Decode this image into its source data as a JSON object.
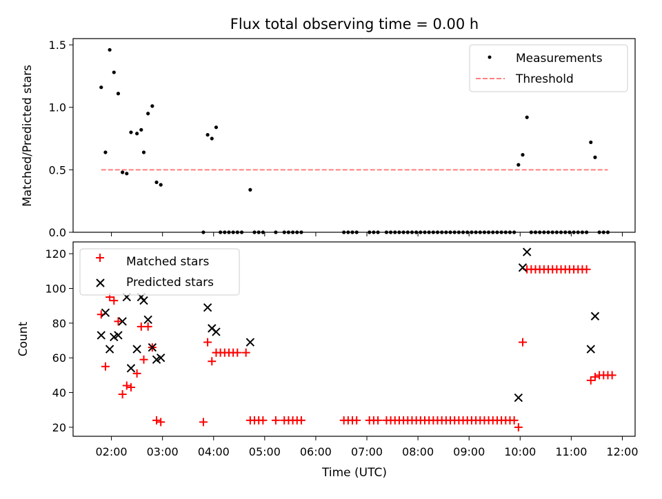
{
  "title": "Flux total observing time = 0.00 h",
  "chart_data": [
    {
      "id": "ratio",
      "type": "scatter",
      "ylabel": "Matched/Predicted stars",
      "xlim": [
        "01:15",
        "12:15"
      ],
      "ylim": [
        0,
        1.55
      ],
      "yticks": [
        0.0,
        0.5,
        1.0,
        1.5
      ],
      "ytick_labels": [
        "0.0",
        "0.5",
        "1.0",
        "1.5"
      ],
      "legend_position": "top-right",
      "legend": [
        "Measurements",
        "Threshold"
      ],
      "series": [
        {
          "name": "Measurements",
          "style": "dot",
          "color": "#000000",
          "points": [
            [
              "01:48",
              1.16
            ],
            [
              "01:53",
              0.64
            ],
            [
              "01:58",
              1.46
            ],
            [
              "02:03",
              1.28
            ],
            [
              "02:08",
              1.11
            ],
            [
              "02:13",
              0.48
            ],
            [
              "02:18",
              0.47
            ],
            [
              "02:23",
              0.8
            ],
            [
              "02:30",
              0.79
            ],
            [
              "02:35",
              0.82
            ],
            [
              "02:38",
              0.64
            ],
            [
              "02:43",
              0.95
            ],
            [
              "02:48",
              1.01
            ],
            [
              "02:53",
              0.4
            ],
            [
              "02:58",
              0.38
            ],
            [
              "03:48",
              0.0
            ],
            [
              "03:53",
              0.78
            ],
            [
              "03:58",
              0.75
            ],
            [
              "04:03",
              0.84
            ],
            [
              "04:08",
              0.0
            ],
            [
              "04:13",
              0.0
            ],
            [
              "04:18",
              0.0
            ],
            [
              "04:23",
              0.0
            ],
            [
              "04:28",
              0.0
            ],
            [
              "04:33",
              0.0
            ],
            [
              "04:43",
              0.34
            ],
            [
              "04:48",
              0.0
            ],
            [
              "04:53",
              0.0
            ],
            [
              "04:58",
              0.0
            ],
            [
              "05:13",
              0.0
            ],
            [
              "05:23",
              0.0
            ],
            [
              "05:28",
              0.0
            ],
            [
              "05:33",
              0.0
            ],
            [
              "05:38",
              0.0
            ],
            [
              "05:43",
              0.0
            ],
            [
              "06:33",
              0.0
            ],
            [
              "06:38",
              0.0
            ],
            [
              "06:43",
              0.0
            ],
            [
              "06:48",
              0.0
            ],
            [
              "07:03",
              0.0
            ],
            [
              "07:08",
              0.0
            ],
            [
              "07:13",
              0.0
            ],
            [
              "07:23",
              0.0
            ],
            [
              "07:28",
              0.0
            ],
            [
              "07:33",
              0.0
            ],
            [
              "07:38",
              0.0
            ],
            [
              "07:43",
              0.0
            ],
            [
              "07:48",
              0.0
            ],
            [
              "07:53",
              0.0
            ],
            [
              "07:58",
              0.0
            ],
            [
              "08:03",
              0.0
            ],
            [
              "08:08",
              0.0
            ],
            [
              "08:13",
              0.0
            ],
            [
              "08:18",
              0.0
            ],
            [
              "08:23",
              0.0
            ],
            [
              "08:28",
              0.0
            ],
            [
              "08:33",
              0.0
            ],
            [
              "08:38",
              0.0
            ],
            [
              "08:43",
              0.0
            ],
            [
              "08:48",
              0.0
            ],
            [
              "08:53",
              0.0
            ],
            [
              "08:58",
              0.0
            ],
            [
              "09:03",
              0.0
            ],
            [
              "09:08",
              0.0
            ],
            [
              "09:13",
              0.0
            ],
            [
              "09:18",
              0.0
            ],
            [
              "09:23",
              0.0
            ],
            [
              "09:28",
              0.0
            ],
            [
              "09:33",
              0.0
            ],
            [
              "09:38",
              0.0
            ],
            [
              "09:43",
              0.0
            ],
            [
              "09:48",
              0.0
            ],
            [
              "09:53",
              0.0
            ],
            [
              "09:58",
              0.54
            ],
            [
              "10:03",
              0.62
            ],
            [
              "10:08",
              0.92
            ],
            [
              "10:13",
              0.0
            ],
            [
              "10:18",
              0.0
            ],
            [
              "10:23",
              0.0
            ],
            [
              "10:28",
              0.0
            ],
            [
              "10:33",
              0.0
            ],
            [
              "10:38",
              0.0
            ],
            [
              "10:43",
              0.0
            ],
            [
              "10:48",
              0.0
            ],
            [
              "10:53",
              0.0
            ],
            [
              "10:58",
              0.0
            ],
            [
              "11:03",
              0.0
            ],
            [
              "11:08",
              0.0
            ],
            [
              "11:13",
              0.0
            ],
            [
              "11:18",
              0.0
            ],
            [
              "11:23",
              0.72
            ],
            [
              "11:28",
              0.6
            ],
            [
              "11:33",
              0.0
            ],
            [
              "11:38",
              0.0
            ],
            [
              "11:43",
              0.0
            ]
          ]
        },
        {
          "name": "Threshold",
          "style": "dashed-line",
          "color": "#ff7f7f",
          "points": [
            [
              "01:48",
              0.5
            ],
            [
              "11:43",
              0.5
            ]
          ]
        }
      ]
    },
    {
      "id": "counts",
      "type": "scatter",
      "ylabel": "Count",
      "xlabel": "Time (UTC)",
      "xlim": [
        "01:15",
        "12:15"
      ],
      "xticks": [
        "02:00",
        "03:00",
        "04:00",
        "05:00",
        "06:00",
        "07:00",
        "08:00",
        "09:00",
        "10:00",
        "11:00",
        "12:00"
      ],
      "ylim": [
        14.8,
        126.8
      ],
      "yticks": [
        20,
        40,
        60,
        80,
        100,
        120
      ],
      "ytick_labels": [
        "20",
        "40",
        "60",
        "80",
        "100",
        "120"
      ],
      "legend_position": "top-left",
      "legend": [
        "Matched stars",
        "Predicted stars"
      ],
      "series": [
        {
          "name": "Matched stars",
          "marker": "plus",
          "color": "#ff0000",
          "points": [
            [
              "01:48",
              85
            ],
            [
              "01:53",
              55
            ],
            [
              "01:58",
              95
            ],
            [
              "02:03",
              93
            ],
            [
              "02:08",
              81
            ],
            [
              "02:13",
              39
            ],
            [
              "02:18",
              44
            ],
            [
              "02:23",
              43
            ],
            [
              "02:30",
              51
            ],
            [
              "02:35",
              78
            ],
            [
              "02:38",
              59
            ],
            [
              "02:43",
              78
            ],
            [
              "02:48",
              66
            ],
            [
              "02:53",
              24
            ],
            [
              "02:58",
              23
            ],
            [
              "03:48",
              23
            ],
            [
              "03:53",
              69
            ],
            [
              "03:58",
              58
            ],
            [
              "04:03",
              63
            ],
            [
              "04:08",
              63
            ],
            [
              "04:13",
              63
            ],
            [
              "04:18",
              63
            ],
            [
              "04:23",
              63
            ],
            [
              "04:28",
              63
            ],
            [
              "04:38",
              63
            ],
            [
              "04:43",
              24
            ],
            [
              "04:48",
              24
            ],
            [
              "04:53",
              24
            ],
            [
              "04:58",
              24
            ],
            [
              "05:13",
              24
            ],
            [
              "05:23",
              24
            ],
            [
              "05:28",
              24
            ],
            [
              "05:33",
              24
            ],
            [
              "05:38",
              24
            ],
            [
              "05:43",
              24
            ],
            [
              "06:33",
              24
            ],
            [
              "06:38",
              24
            ],
            [
              "06:43",
              24
            ],
            [
              "06:48",
              24
            ],
            [
              "07:03",
              24
            ],
            [
              "07:08",
              24
            ],
            [
              "07:13",
              24
            ],
            [
              "07:23",
              24
            ],
            [
              "07:28",
              24
            ],
            [
              "07:33",
              24
            ],
            [
              "07:38",
              24
            ],
            [
              "07:43",
              24
            ],
            [
              "07:48",
              24
            ],
            [
              "07:53",
              24
            ],
            [
              "07:58",
              24
            ],
            [
              "08:03",
              24
            ],
            [
              "08:08",
              24
            ],
            [
              "08:13",
              24
            ],
            [
              "08:18",
              24
            ],
            [
              "08:23",
              24
            ],
            [
              "08:28",
              24
            ],
            [
              "08:33",
              24
            ],
            [
              "08:38",
              24
            ],
            [
              "08:43",
              24
            ],
            [
              "08:48",
              24
            ],
            [
              "08:53",
              24
            ],
            [
              "08:58",
              24
            ],
            [
              "09:03",
              24
            ],
            [
              "09:08",
              24
            ],
            [
              "09:13",
              24
            ],
            [
              "09:18",
              24
            ],
            [
              "09:23",
              24
            ],
            [
              "09:28",
              24
            ],
            [
              "09:33",
              24
            ],
            [
              "09:38",
              24
            ],
            [
              "09:43",
              24
            ],
            [
              "09:48",
              24
            ],
            [
              "09:53",
              24
            ],
            [
              "09:58",
              20
            ],
            [
              "10:03",
              69
            ],
            [
              "10:08",
              111
            ],
            [
              "10:13",
              111
            ],
            [
              "10:18",
              111
            ],
            [
              "10:23",
              111
            ],
            [
              "10:28",
              111
            ],
            [
              "10:33",
              111
            ],
            [
              "10:38",
              111
            ],
            [
              "10:43",
              111
            ],
            [
              "10:48",
              111
            ],
            [
              "10:53",
              111
            ],
            [
              "10:58",
              111
            ],
            [
              "11:03",
              111
            ],
            [
              "11:08",
              111
            ],
            [
              "11:13",
              111
            ],
            [
              "11:18",
              111
            ],
            [
              "11:23",
              47
            ],
            [
              "11:28",
              49
            ],
            [
              "11:33",
              50
            ],
            [
              "11:38",
              50
            ],
            [
              "11:43",
              50
            ],
            [
              "11:48",
              50
            ]
          ]
        },
        {
          "name": "Predicted stars",
          "marker": "x",
          "color": "#000000",
          "points": [
            [
              "01:48",
              73
            ],
            [
              "01:53",
              86
            ],
            [
              "01:58",
              65
            ],
            [
              "02:03",
              72
            ],
            [
              "02:08",
              73
            ],
            [
              "02:13",
              81
            ],
            [
              "02:18",
              95
            ],
            [
              "02:23",
              54
            ],
            [
              "02:30",
              65
            ],
            [
              "02:35",
              95
            ],
            [
              "02:38",
              93
            ],
            [
              "02:43",
              82
            ],
            [
              "02:48",
              66
            ],
            [
              "02:53",
              59
            ],
            [
              "02:58",
              60
            ],
            [
              "03:53",
              89
            ],
            [
              "03:58",
              77
            ],
            [
              "04:03",
              75
            ],
            [
              "04:43",
              69
            ],
            [
              "09:58",
              37
            ],
            [
              "10:03",
              112
            ],
            [
              "10:08",
              121
            ],
            [
              "11:23",
              65
            ],
            [
              "11:28",
              84
            ]
          ]
        }
      ]
    }
  ]
}
